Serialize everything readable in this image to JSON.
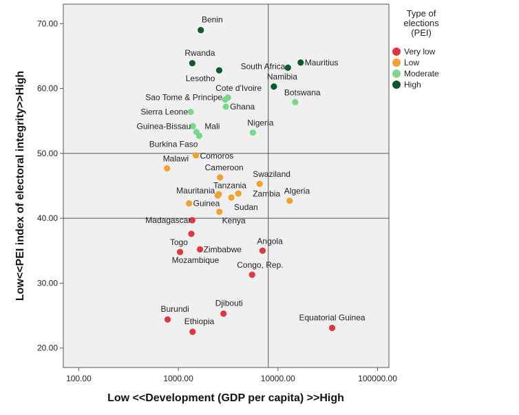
{
  "chart_data": {
    "type": "scatter",
    "xlabel": "Low <<Development (GDP per capita) >>High",
    "ylabel": "Low<<PEI index of electoral integrity>>High",
    "x_scale": "log",
    "xlim": [
      70,
      130000
    ],
    "ylim": [
      17,
      73
    ],
    "x_ticks": [
      100,
      1000,
      10000,
      100000
    ],
    "x_tick_labels": [
      "100.00",
      "1000.00",
      "10000.00",
      "100000.00"
    ],
    "y_ticks": [
      20,
      30,
      40,
      50,
      60,
      70
    ],
    "y_tick_labels": [
      "20.00",
      "30.00",
      "40.00",
      "50.00",
      "60.00",
      "70.00"
    ],
    "reference_lines": {
      "x": 8000,
      "y": [
        40,
        50
      ]
    },
    "legend": {
      "title": "Type of elections (PEI)",
      "title_lines": [
        "Type of",
        "elections",
        "(PEI)"
      ],
      "position": "top-right",
      "entries": [
        {
          "label": "Very low",
          "color": "#e0373f"
        },
        {
          "label": "Low",
          "color": "#f2a030"
        },
        {
          "label": "Moderate",
          "color": "#79d889"
        },
        {
          "label": "High",
          "color": "#0b5a2a"
        }
      ]
    },
    "points": [
      {
        "label": "Benin",
        "x": 1680,
        "y": 69.0,
        "category": "High",
        "anchor": "end",
        "dx": 32,
        "dy": -11
      },
      {
        "label": "Rwanda",
        "x": 1380,
        "y": 63.9,
        "category": "High",
        "anchor": "start",
        "dx": -11,
        "dy": -11
      },
      {
        "label": "Lesotho",
        "x": 2570,
        "y": 62.8,
        "category": "High",
        "anchor": "end",
        "dx": -6,
        "dy": 16
      },
      {
        "label": "South Africa",
        "x": 12600,
        "y": 63.2,
        "category": "High",
        "anchor": "end",
        "dx": -4,
        "dy": 2
      },
      {
        "label": "Mauritius",
        "x": 16900,
        "y": 64.0,
        "category": "High",
        "anchor": "start",
        "dx": 6,
        "dy": 4
      },
      {
        "label": "Namibia",
        "x": 9100,
        "y": 60.3,
        "category": "High",
        "anchor": "start",
        "dx": -10,
        "dy": -10
      },
      {
        "label": "Cote d'Ivoire",
        "x": 3150,
        "y": 58.6,
        "category": "Moderate",
        "anchor": "start",
        "dx": -18,
        "dy": -10
      },
      {
        "label": "Sao Tome & Principe",
        "x": 2950,
        "y": 58.3,
        "category": "Moderate",
        "anchor": "end",
        "dx": -4,
        "dy": 1
      },
      {
        "label": "Ghana",
        "x": 3000,
        "y": 57.2,
        "category": "Moderate",
        "anchor": "start",
        "dx": 6,
        "dy": 4
      },
      {
        "label": "Botswana",
        "x": 14900,
        "y": 57.9,
        "category": "Moderate",
        "anchor": "start",
        "dx": -16,
        "dy": -10
      },
      {
        "label": "Sierra Leone",
        "x": 1330,
        "y": 56.4,
        "category": "Moderate",
        "anchor": "end",
        "dx": -4,
        "dy": 4
      },
      {
        "label": "Guinea-Bissau",
        "x": 1400,
        "y": 54.2,
        "category": "Moderate",
        "anchor": "end",
        "dx": -3,
        "dy": 4
      },
      {
        "label": "Mali",
        "x": 1520,
        "y": 53.3,
        "category": "Moderate",
        "anchor": "start",
        "dx": 12,
        "dy": -4
      },
      {
        "label": "Burkina Faso",
        "x": 1620,
        "y": 52.7,
        "category": "Moderate",
        "anchor": "end",
        "dx": -2,
        "dy": 16
      },
      {
        "label": "Nigeria",
        "x": 5600,
        "y": 53.2,
        "category": "Moderate",
        "anchor": "start",
        "dx": -8,
        "dy": -10
      },
      {
        "label": "Comoros",
        "x": 1500,
        "y": 49.7,
        "category": "Low",
        "anchor": "start",
        "dx": 6,
        "dy": 5
      },
      {
        "label": "Malawi",
        "x": 770,
        "y": 47.7,
        "category": "Low",
        "anchor": "start",
        "dx": -6,
        "dy": -10
      },
      {
        "label": "Cameroon",
        "x": 2620,
        "y": 46.3,
        "category": "Low",
        "anchor": "start",
        "dx": -22,
        "dy": -10
      },
      {
        "label": "Swaziland",
        "x": 6550,
        "y": 45.3,
        "category": "Low",
        "anchor": "start",
        "dx": -10,
        "dy": -10
      },
      {
        "label": "Tanzania",
        "x": 2550,
        "y": 43.7,
        "category": "Low",
        "anchor": "start",
        "dx": -8,
        "dy": -9
      },
      {
        "label": "Mauritania",
        "x": 2480,
        "y": 43.5,
        "category": "Low",
        "anchor": "end",
        "dx": -4,
        "dy": -3
      },
      {
        "label": "Zambia",
        "x": 4000,
        "y": 43.8,
        "category": "Low",
        "anchor": "start",
        "dx": 21,
        "dy": 4
      },
      {
        "label": "Algeria",
        "x": 13100,
        "y": 42.7,
        "category": "Low",
        "anchor": "start",
        "dx": -8,
        "dy": -10
      },
      {
        "label": "Guinea",
        "x": 1280,
        "y": 42.3,
        "category": "Low",
        "anchor": "start",
        "dx": 6,
        "dy": 4
      },
      {
        "label": "Sudan",
        "x": 3400,
        "y": 43.2,
        "category": "Low",
        "anchor": "start",
        "dx": 4,
        "dy": 18
      },
      {
        "label": "Kenya",
        "x": 2580,
        "y": 41.0,
        "category": "Low",
        "anchor": "start",
        "dx": 4,
        "dy": 17
      },
      {
        "label": "Madagascar",
        "x": 1380,
        "y": 39.7,
        "category": "Very low",
        "anchor": "end",
        "dx": -2,
        "dy": 4
      },
      {
        "label": "Togo",
        "x": 1350,
        "y": 37.6,
        "category": "Very low",
        "anchor": "end",
        "dx": -5,
        "dy": 16
      },
      {
        "label": "Zimbabwe",
        "x": 1650,
        "y": 35.2,
        "category": "Very low",
        "anchor": "start",
        "dx": 5,
        "dy": 4
      },
      {
        "label": "Mozambique",
        "x": 1040,
        "y": 34.8,
        "category": "Very low",
        "anchor": "start",
        "dx": -12,
        "dy": 16
      },
      {
        "label": "Angola",
        "x": 7000,
        "y": 35.0,
        "category": "Very low",
        "anchor": "start",
        "dx": -8,
        "dy": -10
      },
      {
        "label": "Congo, Rep.",
        "x": 5500,
        "y": 31.3,
        "category": "Very low",
        "anchor": "start",
        "dx": -22,
        "dy": -10
      },
      {
        "label": "Djibouti",
        "x": 2840,
        "y": 25.3,
        "category": "Very low",
        "anchor": "start",
        "dx": -12,
        "dy": -11
      },
      {
        "label": "Burundi",
        "x": 780,
        "y": 24.4,
        "category": "Very low",
        "anchor": "start",
        "dx": -10,
        "dy": -11
      },
      {
        "label": "Ethiopia",
        "x": 1390,
        "y": 22.5,
        "category": "Very low",
        "anchor": "start",
        "dx": -12,
        "dy": -11
      },
      {
        "label": "Equatorial Guinea",
        "x": 35000,
        "y": 23.1,
        "category": "Very low",
        "anchor": "middle",
        "dx": 0,
        "dy": -11
      }
    ]
  }
}
